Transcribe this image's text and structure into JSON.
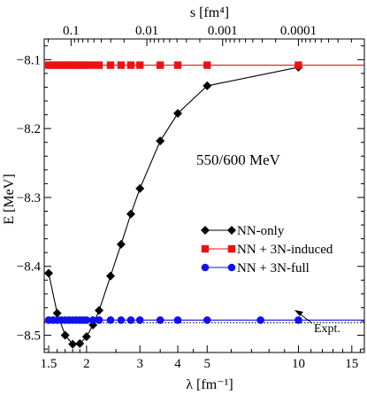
{
  "chart_data": {
    "type": "line",
    "x_scale": "log",
    "xlabel": "λ [fm⁻¹]",
    "ylabel": "E  [MeV]",
    "top_axis_label": "s [fm⁴]",
    "xlim": [
      1.45,
      16.5
    ],
    "ylim": [
      -8.525,
      -8.07
    ],
    "x_ticks": [
      1.5,
      2,
      3,
      4,
      5,
      10,
      15
    ],
    "x_tick_labels": [
      "1.5",
      "2",
      "3",
      "4",
      "5",
      "10",
      "15"
    ],
    "y_ticks": [
      -8.5,
      -8.4,
      -8.3,
      -8.2,
      -8.1
    ],
    "y_tick_labels": [
      "-8.5",
      "-8.4",
      "-8.3",
      "-8.2",
      "-8.1"
    ],
    "top_ticks": [
      0.1,
      0.01,
      0.001,
      0.0001
    ],
    "top_tick_labels": [
      "0.1",
      "0.01",
      "0.001",
      "0.0001"
    ],
    "annotation": "550/600 MeV",
    "expt_label": "Expt.",
    "expt_value": -8.482,
    "legend_position": "right-middle",
    "grid": false,
    "series": [
      {
        "name": "NN-only",
        "color": "#000000",
        "marker": "diamond",
        "x": [
          1.5,
          1.6,
          1.7,
          1.8,
          1.9,
          2.0,
          2.1,
          2.2,
          2.4,
          2.6,
          2.8,
          3.0,
          3.5,
          4.0,
          5.0,
          10.0
        ],
        "y": [
          -8.41,
          -8.468,
          -8.5,
          -8.513,
          -8.512,
          -8.502,
          -8.485,
          -8.464,
          -8.414,
          -8.368,
          -8.324,
          -8.287,
          -8.218,
          -8.178,
          -8.138,
          -8.111
        ]
      },
      {
        "name": "NN + 3N-induced",
        "color": "#ee1111",
        "marker": "square",
        "x": [
          1.5,
          1.55,
          1.6,
          1.65,
          1.7,
          1.75,
          1.8,
          1.85,
          1.9,
          1.95,
          2.0,
          2.1,
          2.2,
          2.4,
          2.6,
          2.8,
          3.0,
          3.5,
          4.0,
          5.0,
          10.0
        ],
        "y": [
          -8.108,
          -8.108,
          -8.108,
          -8.108,
          -8.108,
          -8.108,
          -8.108,
          -8.108,
          -8.108,
          -8.108,
          -8.108,
          -8.108,
          -8.108,
          -8.108,
          -8.108,
          -8.108,
          -8.108,
          -8.108,
          -8.108,
          -8.108,
          -8.108
        ]
      },
      {
        "name": "NN + 3N-full",
        "color": "#1111ee",
        "marker": "circle",
        "x": [
          1.5,
          1.55,
          1.6,
          1.65,
          1.7,
          1.75,
          1.8,
          1.85,
          1.9,
          1.95,
          2.0,
          2.1,
          2.2,
          2.4,
          2.6,
          2.8,
          3.0,
          3.5,
          4.0,
          5.0,
          7.5,
          10.0
        ],
        "y": [
          -8.478,
          -8.478,
          -8.478,
          -8.478,
          -8.478,
          -8.478,
          -8.478,
          -8.478,
          -8.478,
          -8.478,
          -8.478,
          -8.478,
          -8.478,
          -8.478,
          -8.478,
          -8.478,
          -8.478,
          -8.478,
          -8.478,
          -8.478,
          -8.478,
          -8.478
        ]
      }
    ]
  }
}
